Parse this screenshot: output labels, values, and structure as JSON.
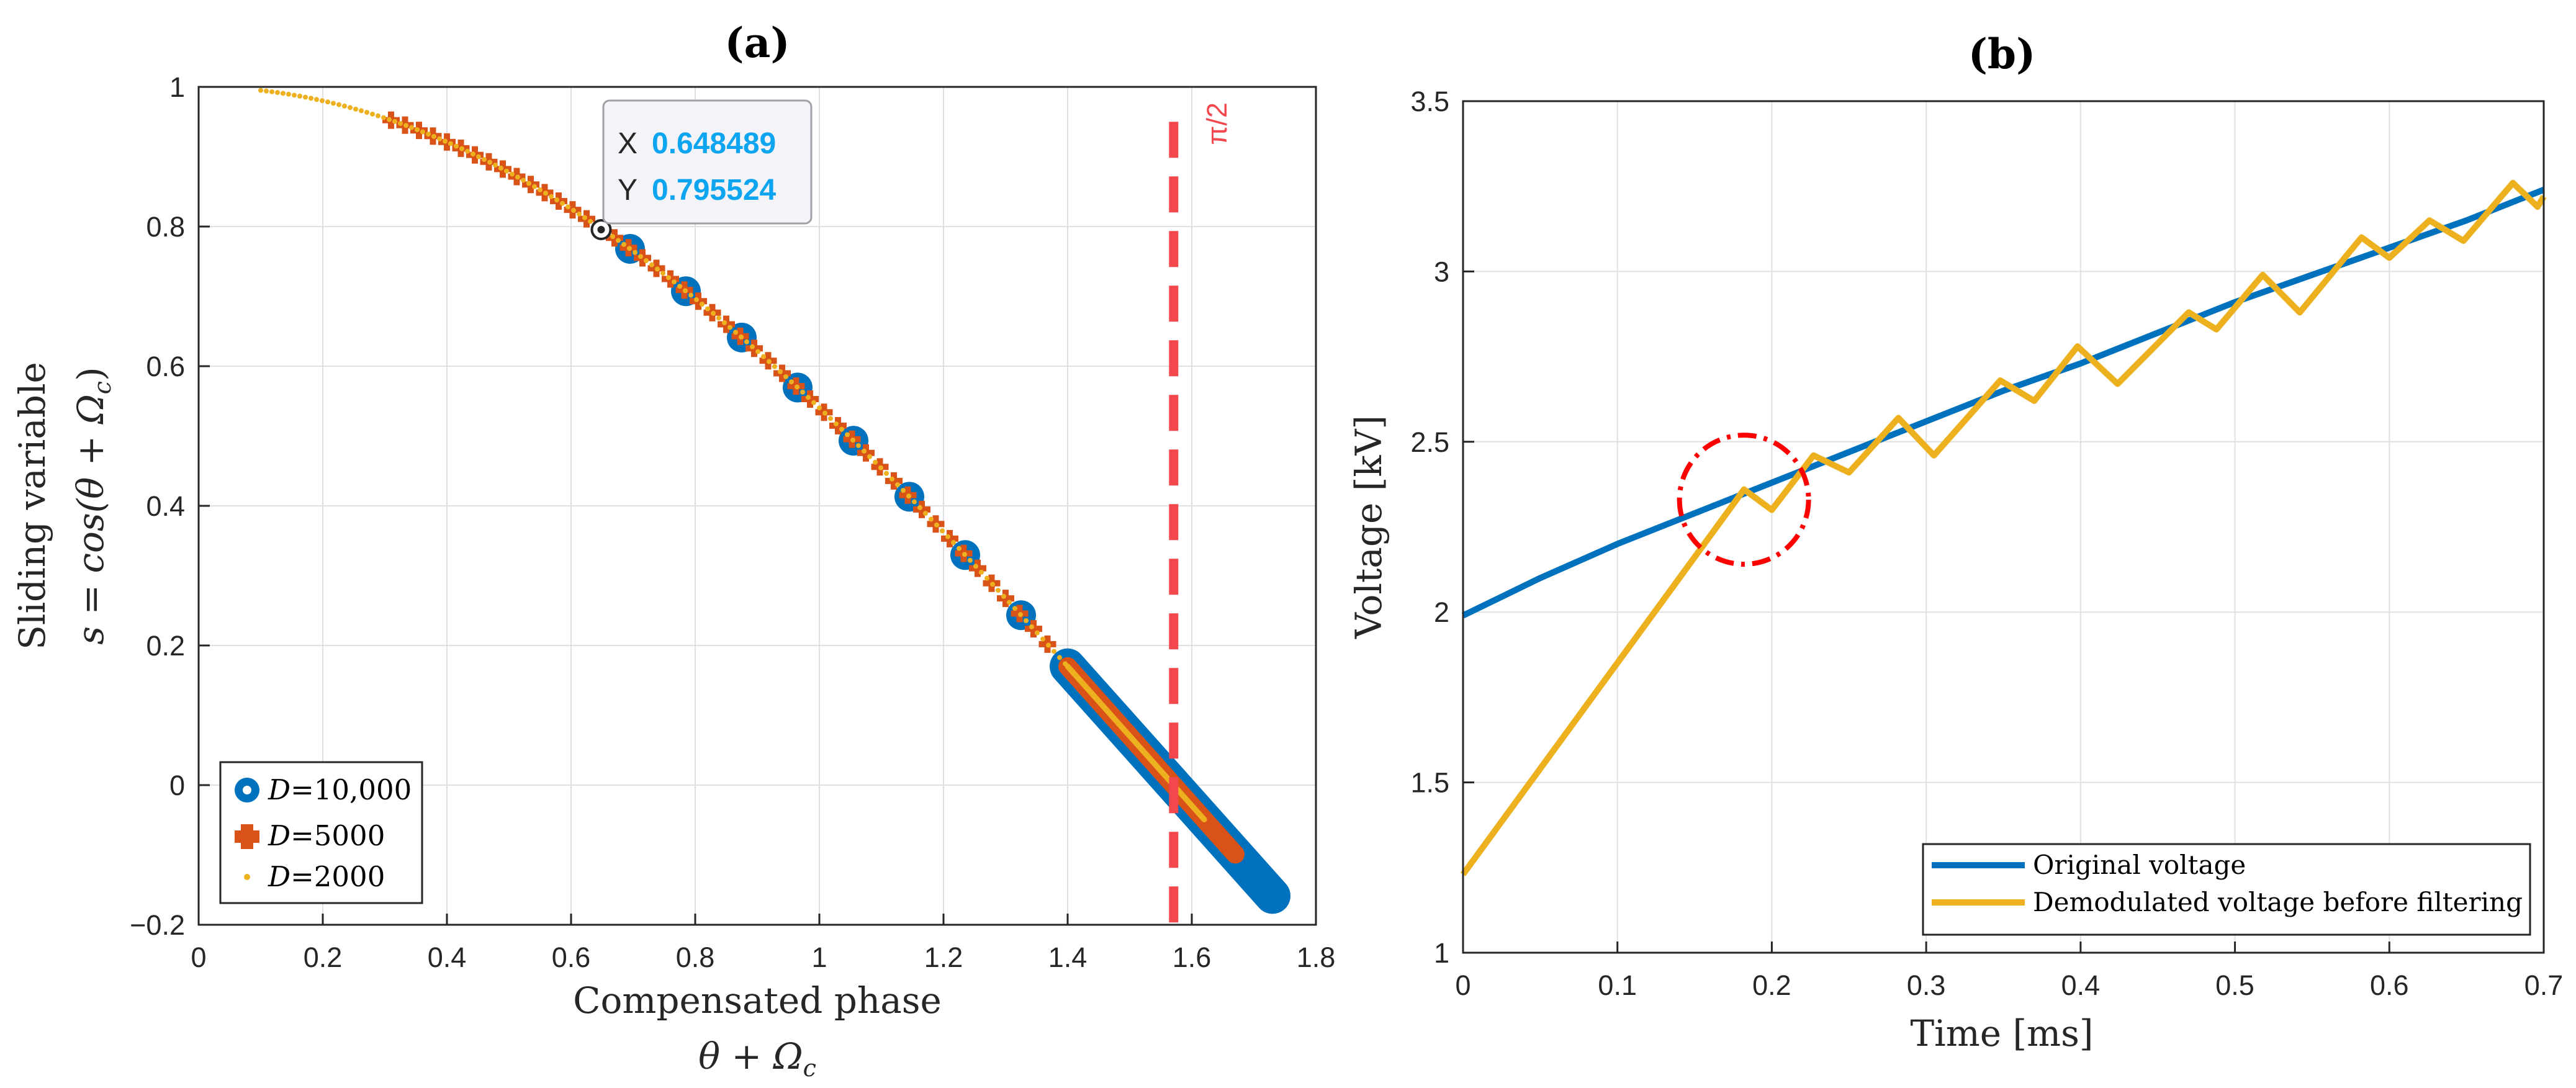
{
  "chart_data": [
    {
      "type": "scatter",
      "title": "(a)",
      "xlabel_line1": "Compensated phase",
      "xlabel_line2": "θ + Ω",
      "xlabel_line2_sub": "c",
      "ylabel_line1": "Sliding variable",
      "ylabel_line2": "s = cos(θ + Ω",
      "ylabel_line2_sub": "c",
      "ylabel_line2_end": ")",
      "xlim": [
        0,
        1.8
      ],
      "ylim": [
        -0.2,
        1
      ],
      "xticks": [
        "0",
        "0.2",
        "0.4",
        "0.6",
        "0.8",
        "1",
        "1.2",
        "1.4",
        "1.6",
        "1.8"
      ],
      "yticks": [
        "−0.2",
        "0",
        "0.2",
        "0.4",
        "0.6",
        "0.8",
        "1"
      ],
      "vline": {
        "x": 1.5708,
        "label": "π/2",
        "color": "#f2474d"
      },
      "datatip": {
        "x_label": "X",
        "x_value": "0.648489",
        "y_label": "Y",
        "y_value": "0.795524",
        "x": 0.648489,
        "y": 0.795524
      },
      "series": [
        {
          "name": "D=10,000",
          "label_var": "D",
          "label_val": "=10,000",
          "color": "#0072bd",
          "marker": "circle",
          "x": [
            0.695,
            0.785,
            0.875,
            0.965,
            1.055,
            1.145,
            1.235,
            1.325
          ],
          "dense_segment": [
            1.4,
            1.73
          ]
        },
        {
          "name": "D=5000",
          "label_var": "D",
          "label_val": "=5000",
          "color": "#d95319",
          "marker": "plus",
          "x_range": [
            0.31,
            1.38
          ],
          "x_step": 0.0225,
          "dense_segment": [
            1.4,
            1.67
          ]
        },
        {
          "name": "D=2000",
          "label_var": "D",
          "label_val": "=2000",
          "color": "#edb120",
          "marker": "dot",
          "x_range": [
            0.1,
            1.4
          ],
          "x_step": 0.009,
          "dense_segment": [
            1.4,
            1.62
          ]
        }
      ]
    },
    {
      "type": "line",
      "title": "(b)",
      "xlabel": "Time [ms]",
      "ylabel": "Voltage [kV]",
      "xlim": [
        0,
        0.7
      ],
      "ylim": [
        1,
        3.5
      ],
      "xticks": [
        "0",
        "0.1",
        "0.2",
        "0.3",
        "0.4",
        "0.5",
        "0.6",
        "0.7"
      ],
      "yticks": [
        "1",
        "1.5",
        "2",
        "2.5",
        "3",
        "3.5"
      ],
      "series": [
        {
          "name": "Original voltage",
          "color": "#0072bd",
          "x": [
            0,
            0.05,
            0.1,
            0.15,
            0.2,
            0.25,
            0.3,
            0.35,
            0.4,
            0.45,
            0.5,
            0.55,
            0.6,
            0.65,
            0.7
          ],
          "y": [
            1.99,
            2.1,
            2.2,
            2.29,
            2.38,
            2.47,
            2.56,
            2.65,
            2.73,
            2.82,
            2.91,
            2.99,
            3.07,
            3.15,
            3.24
          ]
        },
        {
          "name": "Demodulated voltage before filtering",
          "color": "#edb120",
          "x": [
            0,
            0.182,
            0.2,
            0.227,
            0.25,
            0.282,
            0.305,
            0.348,
            0.37,
            0.398,
            0.424,
            0.47,
            0.488,
            0.518,
            0.542,
            0.582,
            0.6,
            0.626,
            0.648,
            0.68,
            0.696,
            0.7
          ],
          "y": [
            1.23,
            2.36,
            2.3,
            2.46,
            2.41,
            2.57,
            2.46,
            2.68,
            2.62,
            2.78,
            2.67,
            2.88,
            2.83,
            2.99,
            2.88,
            3.1,
            3.04,
            3.15,
            3.09,
            3.26,
            3.19,
            3.22
          ]
        }
      ],
      "annotation": {
        "shape": "dashed-circle",
        "color": "#ff0000",
        "center": [
          0.182,
          2.33
        ]
      }
    }
  ]
}
